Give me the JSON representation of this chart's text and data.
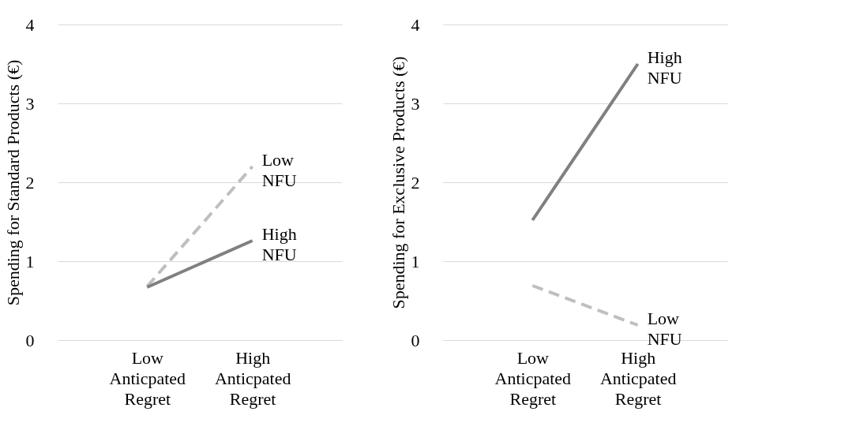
{
  "chart_data": [
    {
      "type": "line",
      "ylabel": "Spending for Standard Products (€)",
      "categories": [
        "Low Anticpated Regret",
        "High Anticpated Regret"
      ],
      "ylim": [
        0,
        4
      ],
      "yticks": [
        0,
        1,
        2,
        3,
        4
      ],
      "grid": "y",
      "marker": "none",
      "series": [
        {
          "name": "Low NFU",
          "color": "#bfbfbf",
          "line_style": "dashed",
          "values": [
            0.68,
            2.2
          ]
        },
        {
          "name": "High NFU",
          "color": "#808080",
          "line_style": "solid",
          "values": [
            0.67,
            1.26
          ]
        }
      ]
    },
    {
      "type": "line",
      "ylabel": "Spending for Exclusive Products (€)",
      "categories": [
        "Low Anticpated Regret",
        "High Anticpated Regret"
      ],
      "ylim": [
        0,
        4
      ],
      "yticks": [
        0,
        1,
        2,
        3,
        4
      ],
      "grid": "y",
      "marker": "none",
      "series": [
        {
          "name": "High NFU",
          "color": "#808080",
          "line_style": "solid",
          "values": [
            1.52,
            3.5
          ]
        },
        {
          "name": "Low NFU",
          "color": "#bfbfbf",
          "line_style": "dashed",
          "values": [
            0.69,
            0.19
          ]
        }
      ]
    }
  ]
}
